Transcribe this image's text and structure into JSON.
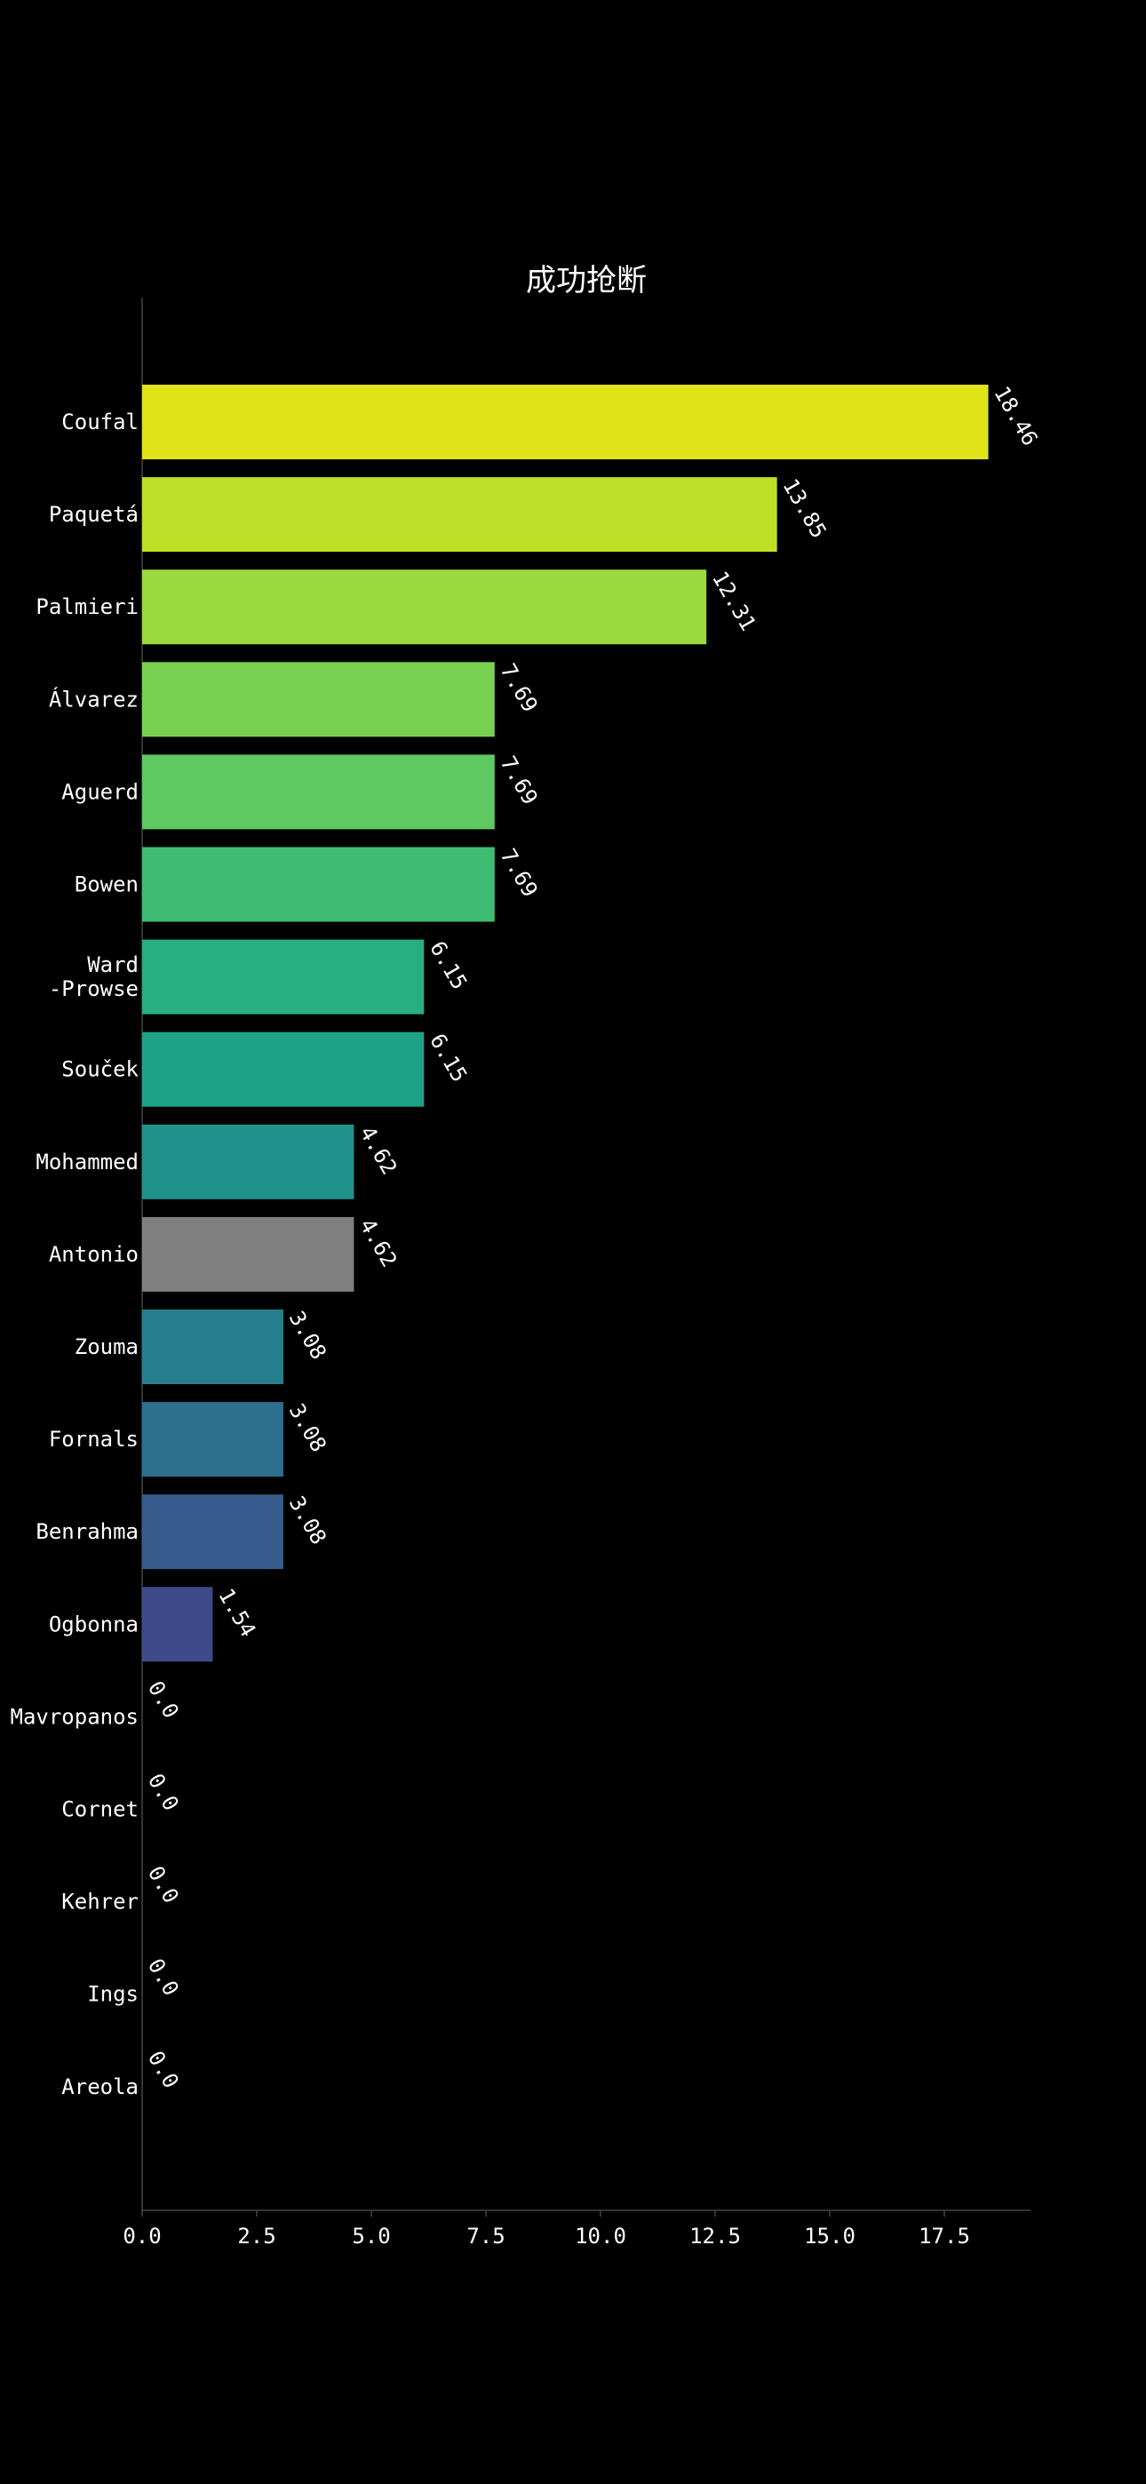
{
  "chart_data": {
    "type": "bar",
    "orientation": "horizontal",
    "title": "成功抢断",
    "xlabel": "",
    "ylabel": "",
    "xlim": [
      0,
      19.38
    ],
    "xticks": [
      "0.0",
      "2.5",
      "5.0",
      "7.5",
      "10.0",
      "12.5",
      "15.0",
      "17.5"
    ],
    "grid": false,
    "legend": "none",
    "categories": [
      "Coufal",
      "Paquetá",
      "Palmieri",
      "Álvarez",
      "Aguerd",
      "Bowen",
      "Ward\n-Prowse",
      "Souček",
      "Mohammed",
      "Antonio",
      "Zouma",
      "Fornals",
      "Benrahma",
      "Ogbonna",
      "Mavropanos",
      "Cornet",
      "Kehrer",
      "Ings",
      "Areola"
    ],
    "values": [
      18.46,
      13.85,
      12.31,
      7.69,
      7.69,
      7.69,
      6.15,
      6.15,
      4.62,
      4.62,
      3.08,
      3.08,
      3.08,
      1.54,
      0.0,
      0.0,
      0.0,
      0.0,
      0.0
    ],
    "value_labels": [
      "18.46",
      "13.85",
      "12.31",
      "7.69",
      "7.69",
      "7.69",
      "6.15",
      "6.15",
      "4.62",
      "4.62",
      "3.08",
      "3.08",
      "3.08",
      "1.54",
      "0.0",
      "0.0",
      "0.0",
      "0.0",
      "0.0"
    ],
    "colors": [
      "#dfe318",
      "#bddf26",
      "#9bd93c",
      "#7ad151",
      "#5ec962",
      "#3fbc73",
      "#28ae80",
      "#1fa188",
      "#21918c",
      "#808080",
      "#277f8e",
      "#2e6f8e",
      "#365c8d",
      "#3e4a89",
      "#443983",
      "#472a7a",
      "#481b6d",
      "#470d60",
      "#440154"
    ],
    "highlight": "Antonio"
  }
}
